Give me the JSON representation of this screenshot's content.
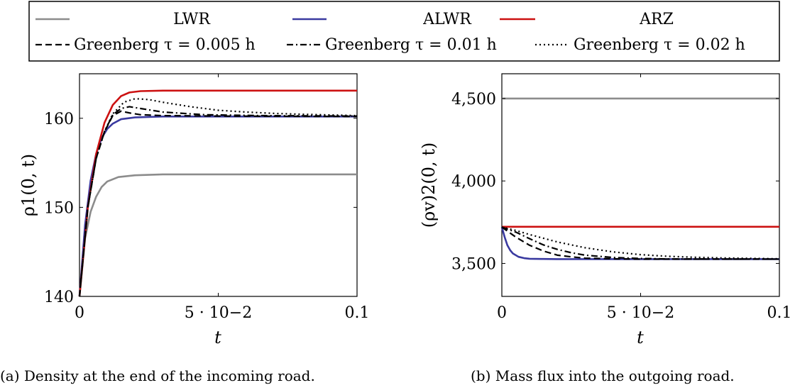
{
  "legend": {
    "entries": [
      {
        "label": "LWR",
        "color": "#8c8c8c",
        "dash": "solid"
      },
      {
        "label": "ALWR",
        "color": "#3a3aa0",
        "dash": "solid"
      },
      {
        "label": "ARZ",
        "color": "#cc1111",
        "dash": "solid"
      },
      {
        "label": "Greenberg τ = 0.005 h",
        "color": "#000000",
        "dash": "dashed"
      },
      {
        "label": "Greenberg τ = 0.01 h",
        "color": "#000000",
        "dash": "dashdot"
      },
      {
        "label": "Greenberg τ = 0.02 h",
        "color": "#000000",
        "dash": "dotted"
      }
    ]
  },
  "chart_data": [
    {
      "type": "line",
      "caption": "(a) Density at the end of the incoming road.",
      "xlabel": "t",
      "ylabel": "ρ1(0, t)",
      "xlim": [
        0,
        0.1
      ],
      "ylim": [
        140,
        165
      ],
      "xticks": [
        {
          "value": 0,
          "label": "0"
        },
        {
          "value": 0.05,
          "label": "5 · 10−2"
        },
        {
          "value": 0.1,
          "label": "0.1"
        }
      ],
      "yticks": [
        {
          "value": 140,
          "label": "140"
        },
        {
          "value": 150,
          "label": "150"
        },
        {
          "value": 160,
          "label": "160"
        }
      ],
      "grid": false,
      "series": [
        {
          "name": "LWR",
          "x": [
            0,
            0.002,
            0.004,
            0.006,
            0.008,
            0.01,
            0.014,
            0.02,
            0.03,
            0.05,
            0.1
          ],
          "y": [
            140,
            146.5,
            149.5,
            151.2,
            152.3,
            152.9,
            153.4,
            153.6,
            153.7,
            153.7,
            153.7
          ]
        },
        {
          "name": "ALWR",
          "x": [
            0,
            0.002,
            0.004,
            0.006,
            0.008,
            0.01,
            0.012,
            0.015,
            0.02,
            0.03,
            0.05,
            0.1
          ],
          "y": [
            140,
            148,
            153,
            156,
            157.8,
            158.8,
            159.4,
            159.9,
            160.1,
            160.2,
            160.2,
            160.2
          ]
        },
        {
          "name": "ARZ",
          "x": [
            0,
            0.003,
            0.006,
            0.009,
            0.012,
            0.015,
            0.018,
            0.022,
            0.03,
            0.05,
            0.1
          ],
          "y": [
            140,
            150,
            156,
            159.5,
            161.5,
            162.5,
            162.9,
            163.05,
            163.1,
            163.1,
            163.1
          ]
        },
        {
          "name": "Greenberg τ = 0.005 h",
          "x": [
            0,
            0.003,
            0.006,
            0.009,
            0.012,
            0.015,
            0.018,
            0.022,
            0.03,
            0.05,
            0.1
          ],
          "y": [
            140,
            150,
            155.5,
            158.5,
            160.3,
            160.8,
            160.6,
            160.4,
            160.3,
            160.25,
            160.2
          ]
        },
        {
          "name": "Greenberg τ = 0.01 h",
          "x": [
            0,
            0.003,
            0.006,
            0.009,
            0.012,
            0.015,
            0.018,
            0.022,
            0.03,
            0.045,
            0.065,
            0.1
          ],
          "y": [
            140,
            150,
            155.5,
            158.5,
            160.4,
            161.1,
            161.3,
            161.1,
            160.7,
            160.4,
            160.3,
            160.25
          ]
        },
        {
          "name": "Greenberg τ = 0.02 h",
          "x": [
            0,
            0.003,
            0.006,
            0.009,
            0.012,
            0.016,
            0.02,
            0.025,
            0.03,
            0.04,
            0.05,
            0.06,
            0.07,
            0.08,
            0.1
          ],
          "y": [
            140,
            150,
            155.5,
            158.5,
            160.5,
            161.8,
            162.2,
            162.1,
            161.8,
            161.3,
            160.9,
            160.7,
            160.55,
            160.45,
            160.3
          ]
        }
      ]
    },
    {
      "type": "line",
      "caption": "(b) Mass flux into the outgoing road.",
      "xlabel": "t",
      "ylabel": "(ρv)2(0, t)",
      "xlim": [
        0,
        0.1
      ],
      "ylim": [
        3300,
        4650
      ],
      "xticks": [
        {
          "value": 0,
          "label": "0"
        },
        {
          "value": 0.05,
          "label": "5 · 10−2"
        },
        {
          "value": 0.1,
          "label": "0.1"
        }
      ],
      "yticks": [
        {
          "value": 3500,
          "label": "3,500"
        },
        {
          "value": 4000,
          "label": "4,000"
        },
        {
          "value": 4500,
          "label": "4,500"
        }
      ],
      "grid": false,
      "series": [
        {
          "name": "LWR",
          "x": [
            0,
            0.1
          ],
          "y": [
            4500,
            4500
          ]
        },
        {
          "name": "ALWR",
          "x": [
            0,
            0.001,
            0.002,
            0.003,
            0.004,
            0.006,
            0.008,
            0.01,
            0.015,
            0.02,
            0.05,
            0.1
          ],
          "y": [
            3720,
            3660,
            3610,
            3580,
            3560,
            3540,
            3532,
            3528,
            3527,
            3526,
            3526,
            3526
          ]
        },
        {
          "name": "ARZ",
          "x": [
            0,
            0.1
          ],
          "y": [
            3722,
            3722
          ]
        },
        {
          "name": "Greenberg τ = 0.005 h",
          "x": [
            0,
            0.005,
            0.01,
            0.015,
            0.02,
            0.025,
            0.03,
            0.04,
            0.05,
            0.1
          ],
          "y": [
            3720,
            3660,
            3610,
            3575,
            3550,
            3540,
            3532,
            3528,
            3526,
            3526
          ]
        },
        {
          "name": "Greenberg τ = 0.01 h",
          "x": [
            0,
            0.005,
            0.01,
            0.015,
            0.02,
            0.025,
            0.03,
            0.04,
            0.05,
            0.06,
            0.1
          ],
          "y": [
            3720,
            3690,
            3650,
            3612,
            3585,
            3565,
            3550,
            3536,
            3530,
            3527,
            3526
          ]
        },
        {
          "name": "Greenberg τ = 0.02 h",
          "x": [
            0,
            0.005,
            0.01,
            0.02,
            0.03,
            0.04,
            0.05,
            0.06,
            0.07,
            0.08,
            0.1
          ],
          "y": [
            3720,
            3700,
            3675,
            3630,
            3595,
            3570,
            3553,
            3543,
            3537,
            3533,
            3528
          ]
        }
      ]
    }
  ]
}
